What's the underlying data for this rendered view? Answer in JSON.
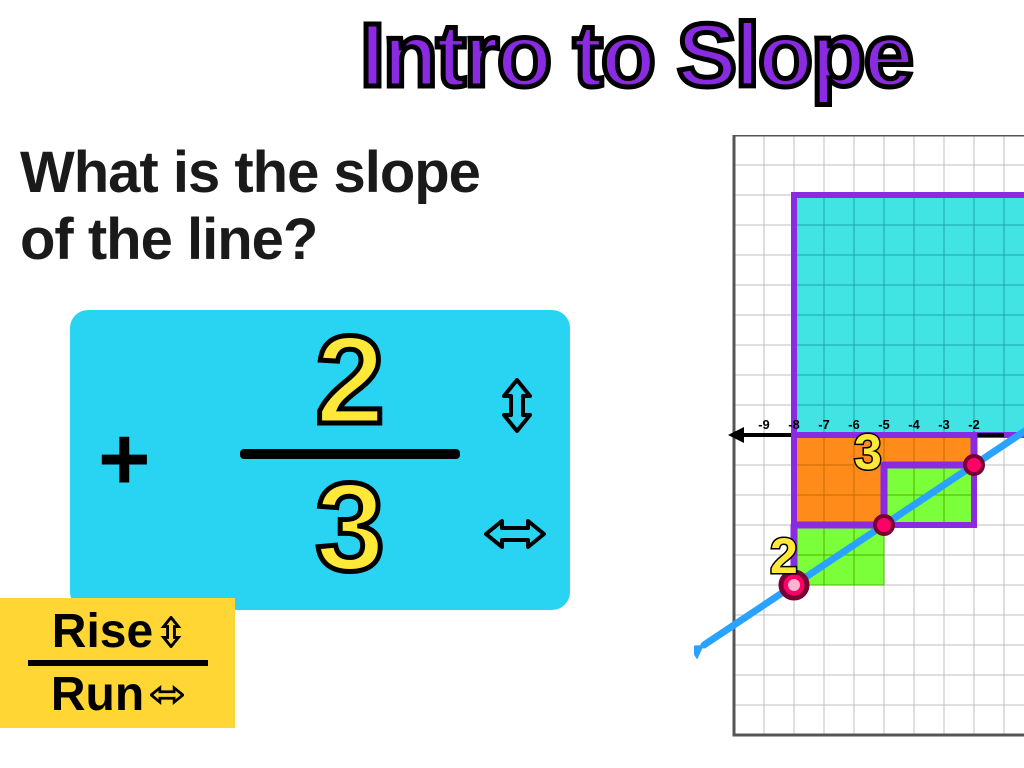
{
  "title": "Intro to Slope",
  "question_line1": "What is the slope",
  "question_line2": "of the line?",
  "fraction": {
    "sign": "+",
    "numerator": "2",
    "denominator": "3",
    "box_color": "#29d3f2",
    "number_color": "#ffe838"
  },
  "riserun": {
    "top": "Rise",
    "bottom": "Run",
    "box_color": "#ffd633"
  },
  "graph": {
    "grid_color": "#bfbfbf",
    "cell": 30,
    "xticks": [
      "-9",
      "-8",
      "-7",
      "-6",
      "-5",
      "-4",
      "-3",
      "-2"
    ],
    "cyan_rect_color": "#2de0e0",
    "orange_rect_color": "#ff8c1a",
    "green_rect_color": "#7aff3a",
    "line_color": "#29a3ff",
    "steps_color": "#8a2be2",
    "point_color": "#ff0066",
    "labels": {
      "two": "2",
      "three": "3"
    }
  }
}
